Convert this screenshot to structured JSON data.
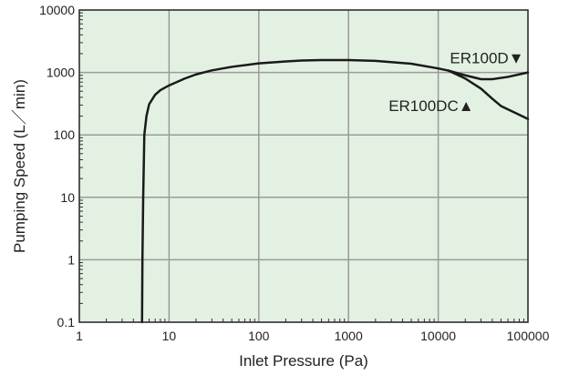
{
  "chart_data": {
    "type": "line",
    "title": "",
    "xlabel": "Inlet Pressure (Pa)",
    "ylabel": "Pumping Speed (L／min)",
    "xscale": "log",
    "yscale": "log",
    "xlim": [
      1,
      100000
    ],
    "ylim": [
      0.1,
      10000
    ],
    "x_ticks": [
      "1",
      "10",
      "100",
      "1000",
      "10000",
      "100000"
    ],
    "y_ticks": [
      "0.1",
      "1",
      "10",
      "100",
      "1000",
      "10000"
    ],
    "grid": true,
    "background": "#e3f1e3",
    "line_color": "#1a1a1a",
    "grid_color": "#9a9a9a",
    "series": [
      {
        "name": "ER100D▼",
        "points": [
          [
            5,
            0.1
          ],
          [
            5.05,
            1
          ],
          [
            5.15,
            10
          ],
          [
            5.3,
            100
          ],
          [
            5.6,
            200
          ],
          [
            6,
            310
          ],
          [
            7,
            440
          ],
          [
            8,
            520
          ],
          [
            10,
            620
          ],
          [
            15,
            800
          ],
          [
            20,
            930
          ],
          [
            30,
            1080
          ],
          [
            50,
            1230
          ],
          [
            100,
            1400
          ],
          [
            200,
            1500
          ],
          [
            300,
            1550
          ],
          [
            500,
            1580
          ],
          [
            1000,
            1580
          ],
          [
            2000,
            1530
          ],
          [
            5000,
            1380
          ],
          [
            10000,
            1160
          ],
          [
            13000,
            1070
          ],
          [
            20000,
            900
          ],
          [
            30000,
            780
          ],
          [
            40000,
            780
          ],
          [
            60000,
            850
          ],
          [
            100000,
            1000
          ]
        ]
      },
      {
        "name": "ER100DC▲",
        "points": [
          [
            13000,
            1070
          ],
          [
            20000,
            800
          ],
          [
            30000,
            550
          ],
          [
            40000,
            380
          ],
          [
            50000,
            290
          ],
          [
            70000,
            230
          ],
          [
            100000,
            180
          ]
        ]
      }
    ],
    "annotations": [
      {
        "text": "ER100D▼",
        "x": 13500,
        "y": 1400
      },
      {
        "text": "ER100DC▲",
        "x": 2800,
        "y": 240
      }
    ]
  }
}
